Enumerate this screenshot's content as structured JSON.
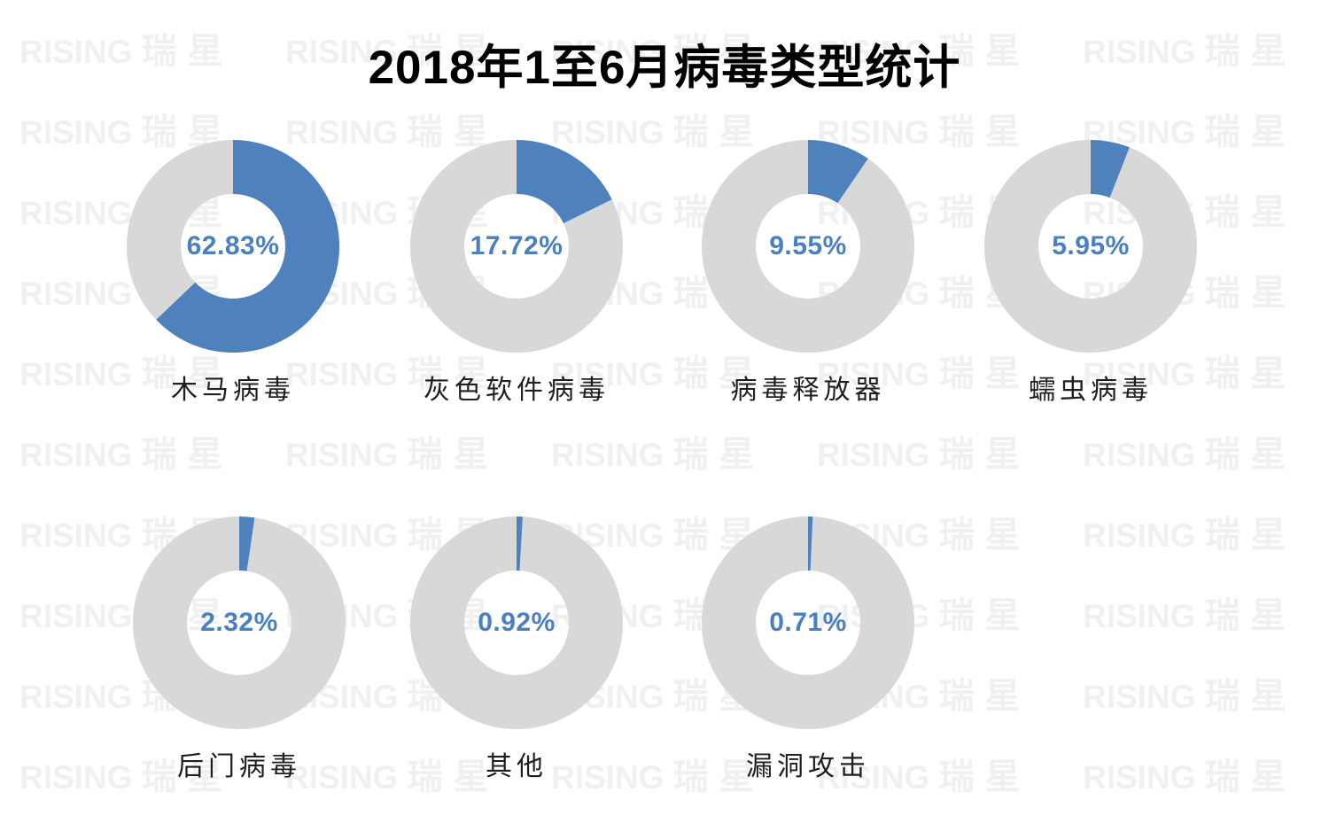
{
  "title": "2018年1至6月病毒类型统计",
  "watermark": {
    "brand_latin": "RISING",
    "brand_cjk": "瑞星"
  },
  "colors": {
    "background": "#ffffff",
    "title_text": "#000000",
    "slice": "#4f81bd",
    "ring": "#d8d8d8",
    "percent_text": "#4a80c0",
    "label_text": "#1f1f1f",
    "watermark_text": "#f0f0f0"
  },
  "chart_data": {
    "type": "pie",
    "variant": "donut_small_multiples",
    "title": "2018年1至6月病毒类型统计",
    "unit": "percent",
    "legend_position": "none",
    "grid": false,
    "categories": [
      "木马病毒",
      "灰色软件病毒",
      "病毒释放器",
      "蠕虫病毒",
      "后门病毒",
      "其他",
      "漏洞攻击"
    ],
    "values": [
      62.83,
      17.72,
      9.55,
      5.95,
      2.32,
      0.92,
      0.71
    ],
    "value_labels": [
      "62.83%",
      "17.72%",
      "9.55%",
      "5.95%",
      "2.32%",
      "0.92%",
      "0.71%"
    ],
    "slice_start_angle_deg": 0,
    "slice_direction": "clockwise"
  }
}
